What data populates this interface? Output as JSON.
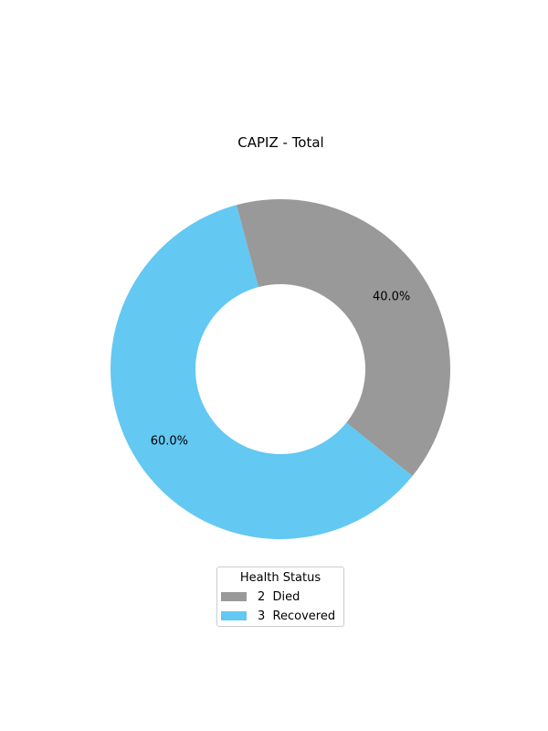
{
  "chart_data": {
    "type": "pie",
    "title": "CAPIZ - Total",
    "donut": true,
    "categories": [
      "Died",
      "Recovered"
    ],
    "values": [
      2,
      3
    ],
    "percent_labels": [
      "40.0%",
      "60.0%"
    ],
    "colors": [
      "#999999",
      "#63c8f2"
    ],
    "legend": {
      "title": "Health Status",
      "placement": "bottom-center",
      "entries": [
        {
          "count": "2",
          "label": "Died",
          "text": "2  Died"
        },
        {
          "count": "3",
          "label": "Recovered",
          "text": "3  Recovered"
        }
      ]
    }
  }
}
